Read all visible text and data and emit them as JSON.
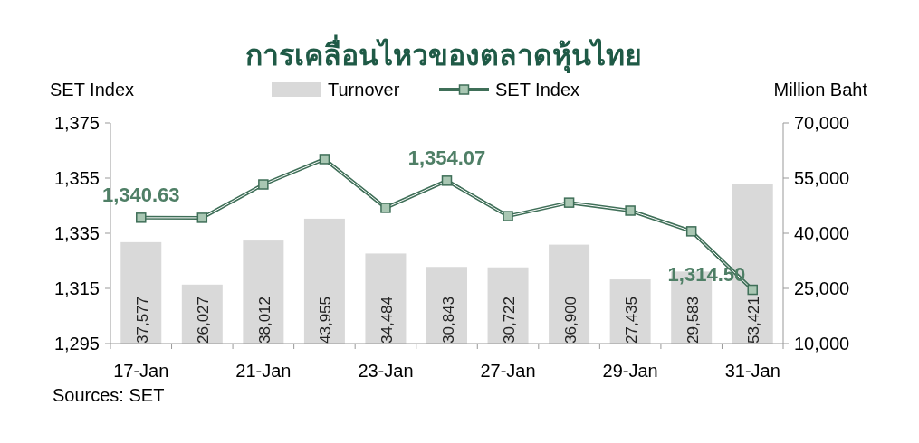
{
  "chart_data": {
    "type": "bar",
    "title": "การเคลื่อนไหวของตลาดหุ้นไทย",
    "ylabel": "SET Index",
    "y2label": "Million Baht",
    "categories": [
      "17-Jan",
      null,
      "21-Jan",
      null,
      "23-Jan",
      null,
      "27-Jan",
      null,
      "29-Jan",
      null,
      "31-Jan"
    ],
    "series": [
      {
        "name": "Turnover",
        "axis": "y2",
        "color": "#d9d9d9",
        "values": [
          37577,
          26027,
          38012,
          43955,
          34484,
          30843,
          30722,
          36900,
          27435,
          29583,
          53421
        ],
        "value_labels": [
          "37,577",
          "26,027",
          "38,012",
          "43,955",
          "34,484",
          "30,843",
          "30,722",
          "36,900",
          "27,435",
          "29,583",
          "53,421"
        ]
      },
      {
        "name": "SET Index",
        "type": "line",
        "axis": "y",
        "color": "#3f6f58",
        "values": [
          1340.63,
          1340.6,
          1352.7,
          1361.9,
          1344.2,
          1354.07,
          1341.2,
          1346.1,
          1343.2,
          1335.7,
          1314.5
        ],
        "value_labels": [
          "1,340.63",
          null,
          null,
          null,
          null,
          "1,354.07",
          null,
          null,
          null,
          null,
          "1,314.50"
        ]
      }
    ],
    "ylim": [
      1295,
      1375
    ],
    "yticks": [
      {
        "value": 1295,
        "label": "1,295"
      },
      {
        "value": 1315,
        "label": "1,315"
      },
      {
        "value": 1335,
        "label": "1,335"
      },
      {
        "value": 1355,
        "label": "1,355"
      },
      {
        "value": 1375,
        "label": "1,375"
      }
    ],
    "y2lim": [
      10000,
      70000
    ],
    "y2ticks": [
      {
        "value": 10000,
        "label": "10,000"
      },
      {
        "value": 25000,
        "label": "25,000"
      },
      {
        "value": 40000,
        "label": "40,000"
      },
      {
        "value": 55000,
        "label": "55,000"
      },
      {
        "value": 70000,
        "label": "70,000"
      }
    ],
    "legend": "top",
    "marker": "square",
    "grid": false,
    "annotations": [
      "Sources: SET"
    ]
  }
}
